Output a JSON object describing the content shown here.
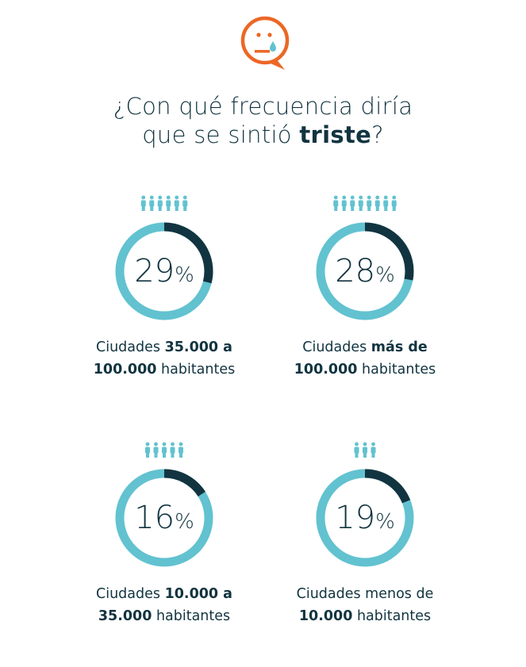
{
  "colors": {
    "accent_orange": "#ec6625",
    "teal": "#62c2cf",
    "dark": "#123440"
  },
  "header": {
    "icon": "sad-face-speech-bubble-icon",
    "title_line1": "¿Con qué frecuencia diría",
    "title_line2_pre": "que se sintió ",
    "title_line2_bold": "triste",
    "title_line2_post": "?"
  },
  "chart_data": {
    "type": "donut",
    "title": "¿Con qué frecuencia diría que se sintió triste?",
    "unit": "%",
    "categories": [
      "Ciudades 35.000 a 100.000 habitantes",
      "Ciudades más de 100.000 habitantes",
      "Ciudades 10.000 a 35.000 habitantes",
      "Ciudades menos de 10.000 habitantes"
    ],
    "values": [
      29,
      28,
      16,
      19
    ],
    "people_icons": [
      6,
      8,
      5,
      3
    ]
  },
  "panels": [
    {
      "value": 29,
      "value_label": "29",
      "sign": "%",
      "people": 6,
      "cap1_pre": "Ciudades ",
      "cap1_bold": "35.000 a",
      "cap2_bold": "100.000",
      "cap2_post": " habitantes"
    },
    {
      "value": 28,
      "value_label": "28",
      "sign": "%",
      "people": 8,
      "cap1_pre": "Ciudades ",
      "cap1_bold": "más de",
      "cap2_bold": "100.000",
      "cap2_post": " habitantes"
    },
    {
      "value": 16,
      "value_label": "16",
      "sign": "%",
      "people": 5,
      "cap1_pre": "Ciudades ",
      "cap1_bold": "10.000 a",
      "cap2_bold": "35.000",
      "cap2_post": " habitantes"
    },
    {
      "value": 19,
      "value_label": "19",
      "sign": "%",
      "people": 3,
      "cap1_pre": "Ciudades  menos de",
      "cap1_bold": "",
      "cap2_bold": "10.000",
      "cap2_post": " habitantes"
    }
  ]
}
